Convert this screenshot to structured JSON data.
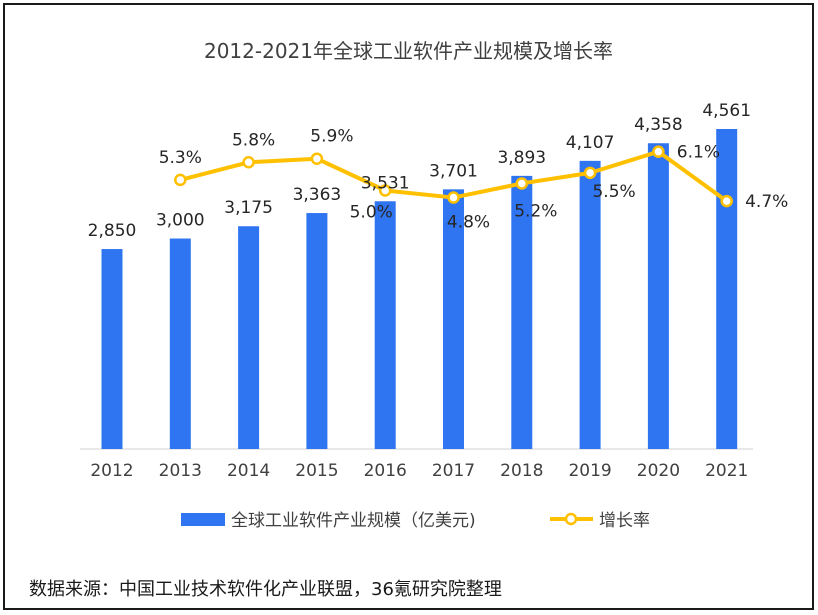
{
  "chart_data": {
    "type": "bar+line",
    "title": "2012-2021年全球工业软件产业规模及增长率",
    "categories": [
      "2012",
      "2013",
      "2014",
      "2015",
      "2016",
      "2017",
      "2018",
      "2019",
      "2020",
      "2021"
    ],
    "series": [
      {
        "name": "全球工业软件产业规模（亿美元)",
        "type": "bar",
        "color": "#2f74f0",
        "values": [
          2850,
          3000,
          3175,
          3363,
          3531,
          3701,
          3893,
          4107,
          4358,
          4561
        ],
        "labels": [
          "2,850",
          "3,000",
          "3,175",
          "3,363",
          "3,531",
          "3,701",
          "3,893",
          "4,107",
          "4,358",
          "4,561"
        ]
      },
      {
        "name": "增长率",
        "type": "line",
        "color": "#ffc000",
        "values": [
          null,
          5.3,
          5.8,
          5.9,
          5.0,
          4.8,
          5.2,
          5.5,
          6.1,
          4.7
        ],
        "labels": [
          "",
          "5.3%",
          "5.8%",
          "5.9%",
          "5.0%",
          "4.8%",
          "5.2%",
          "5.5%",
          "6.1%",
          "4.7%"
        ]
      }
    ],
    "legend": "bottom",
    "grid": false
  },
  "source": "数据来源：中国工业技术软件化产业联盟，36氪研究院整理"
}
